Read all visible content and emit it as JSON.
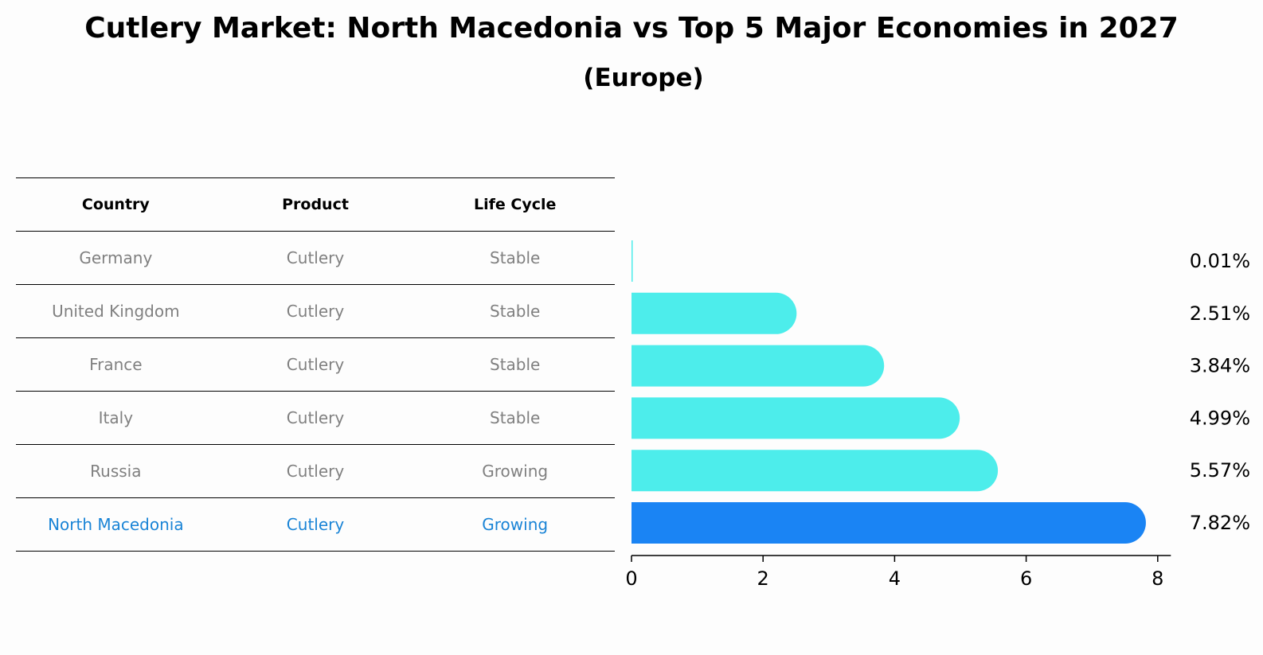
{
  "title": "Cutlery Market: North Macedonia vs Top 5 Major Economies in 2027",
  "subtitle": "(Europe)",
  "table": {
    "headers": [
      "Country",
      "Product",
      "Life Cycle"
    ],
    "rows": [
      [
        "Germany",
        "Cutlery",
        "Stable"
      ],
      [
        "United Kingdom",
        "Cutlery",
        "Stable"
      ],
      [
        "France",
        "Cutlery",
        "Stable"
      ],
      [
        "Italy",
        "Cutlery",
        "Stable"
      ],
      [
        "Russia",
        "Cutlery",
        "Growing"
      ],
      [
        "North Macedonia",
        "Cutlery",
        "Growing"
      ]
    ],
    "highlight_row": 5
  },
  "colors": {
    "bar": "#4dedeb",
    "highlight_bar": "#1a84f4",
    "highlight_text": "#1a84d6",
    "muted_text": "#808080"
  },
  "chart_data": {
    "type": "bar",
    "orientation": "horizontal",
    "categories": [
      "Germany",
      "United Kingdom",
      "France",
      "Italy",
      "Russia",
      "North Macedonia"
    ],
    "values": [
      0.01,
      2.51,
      3.84,
      4.99,
      5.57,
      7.82
    ],
    "value_labels": [
      "0.01%",
      "2.51%",
      "3.84%",
      "4.99%",
      "5.57%",
      "7.82%"
    ],
    "xlim": [
      0,
      8.2
    ],
    "xticks": [
      0,
      2,
      4,
      6,
      8
    ],
    "xlabel": "",
    "ylabel": "",
    "grid": false,
    "highlight_index": 5
  }
}
